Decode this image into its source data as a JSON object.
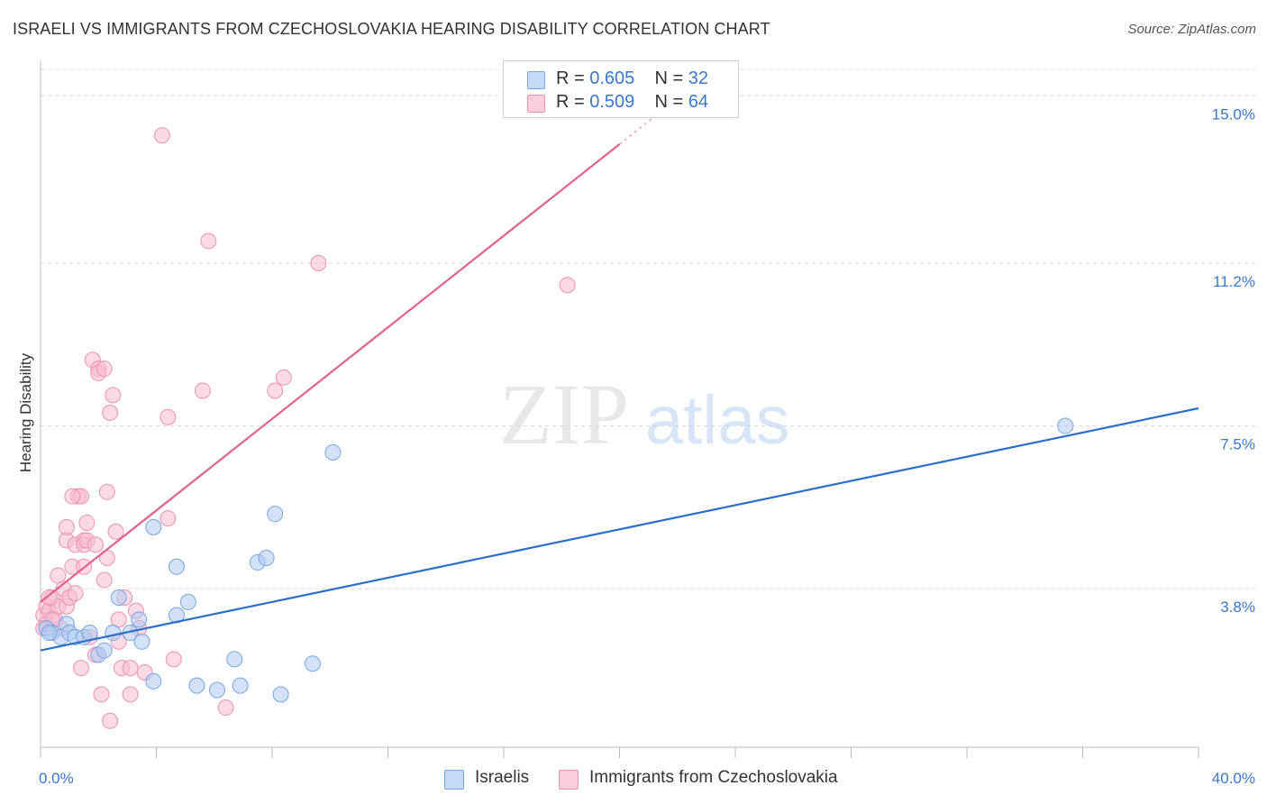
{
  "title": "ISRAELI VS IMMIGRANTS FROM CZECHOSLOVAKIA HEARING DISABILITY CORRELATION CHART",
  "source": "Source: ZipAtlas.com",
  "watermark": {
    "zip": "ZIP",
    "atlas": "atlas"
  },
  "legend": {
    "row1": {
      "r_label": "R = ",
      "r_value": "0.605",
      "n_label": "N = ",
      "n_value": "32"
    },
    "row2": {
      "r_label": "R = ",
      "r_value": "0.509",
      "n_label": "N = ",
      "n_value": "64"
    }
  },
  "bottom_legend": {
    "series1": "Israelis",
    "series2": "Immigrants from Czechoslovakia"
  },
  "colors": {
    "blue_fill": "#aecbf2",
    "blue_stroke": "#7aa6e0",
    "blue_line": "#2b6fcc",
    "pink_fill": "#f7bcd0",
    "pink_stroke": "#ee92b2",
    "pink_line": "#e0608e",
    "axis_label": "#3b78d0"
  },
  "chart_data": {
    "type": "scatter",
    "title": "ISRAELI VS IMMIGRANTS FROM CZECHOSLOVAKIA HEARING DISABILITY CORRELATION CHART",
    "xlabel": "",
    "ylabel": "Hearing Disability",
    "xlim": [
      0,
      40
    ],
    "ylim": [
      0.2,
      15.6
    ],
    "x_tick_labels": [
      "0.0%",
      "40.0%"
    ],
    "y_ticks": [
      3.8,
      7.5,
      11.2,
      15.0
    ],
    "y_tick_labels": [
      "3.8%",
      "7.5%",
      "11.2%",
      "15.0%"
    ],
    "grid": true,
    "series": [
      {
        "name": "Israelis",
        "R": 0.605,
        "N": 32,
        "trend": {
          "x": [
            0,
            40
          ],
          "y": [
            2.4,
            7.9
          ]
        },
        "points": [
          [
            0.2,
            2.9
          ],
          [
            0.4,
            2.8
          ],
          [
            0.7,
            2.7
          ],
          [
            0.9,
            3.0
          ],
          [
            1.0,
            2.8
          ],
          [
            1.2,
            2.7
          ],
          [
            1.5,
            2.7
          ],
          [
            1.7,
            2.8
          ],
          [
            2.0,
            2.3
          ],
          [
            2.2,
            2.4
          ],
          [
            2.5,
            2.8
          ],
          [
            2.7,
            3.6
          ],
          [
            3.1,
            2.8
          ],
          [
            3.4,
            3.1
          ],
          [
            3.5,
            2.6
          ],
          [
            3.9,
            1.7
          ],
          [
            3.9,
            5.2
          ],
          [
            4.7,
            3.2
          ],
          [
            4.7,
            4.3
          ],
          [
            5.1,
            3.5
          ],
          [
            5.4,
            1.6
          ],
          [
            6.1,
            1.5
          ],
          [
            6.7,
            2.2
          ],
          [
            6.9,
            1.6
          ],
          [
            7.5,
            4.4
          ],
          [
            7.8,
            4.5
          ],
          [
            8.1,
            5.5
          ],
          [
            8.3,
            1.4
          ],
          [
            9.4,
            2.1
          ],
          [
            10.1,
            6.9
          ],
          [
            35.4,
            7.5
          ],
          [
            0.3,
            2.8
          ]
        ]
      },
      {
        "name": "Immigrants from Czechoslovakia",
        "R": 0.509,
        "N": 64,
        "trend": {
          "x": [
            0,
            20
          ],
          "y": [
            3.5,
            13.9
          ]
        },
        "trend_dashed": {
          "x": [
            20,
            22.5
          ],
          "y": [
            13.9,
            15.2
          ]
        },
        "points": [
          [
            0.1,
            3.2
          ],
          [
            0.2,
            3.4
          ],
          [
            0.2,
            3.0
          ],
          [
            0.3,
            3.3
          ],
          [
            0.4,
            3.6
          ],
          [
            0.5,
            3.1
          ],
          [
            0.6,
            3.4
          ],
          [
            0.6,
            4.1
          ],
          [
            0.7,
            2.9
          ],
          [
            0.8,
            3.8
          ],
          [
            0.9,
            3.4
          ],
          [
            0.9,
            4.9
          ],
          [
            0.9,
            5.2
          ],
          [
            1.0,
            3.6
          ],
          [
            1.1,
            4.3
          ],
          [
            1.2,
            3.7
          ],
          [
            1.2,
            4.8
          ],
          [
            1.3,
            5.9
          ],
          [
            1.4,
            5.9
          ],
          [
            1.4,
            2.0
          ],
          [
            1.5,
            4.9
          ],
          [
            1.5,
            4.8
          ],
          [
            1.5,
            4.3
          ],
          [
            1.6,
            4.9
          ],
          [
            1.6,
            5.3
          ],
          [
            1.7,
            2.7
          ],
          [
            1.8,
            9.0
          ],
          [
            1.9,
            4.8
          ],
          [
            1.9,
            2.3
          ],
          [
            2.0,
            8.8
          ],
          [
            2.0,
            8.7
          ],
          [
            2.1,
            1.4
          ],
          [
            2.2,
            4.0
          ],
          [
            2.2,
            8.8
          ],
          [
            2.3,
            4.5
          ],
          [
            2.3,
            6.0
          ],
          [
            2.4,
            0.8
          ],
          [
            2.4,
            7.8
          ],
          [
            2.5,
            8.2
          ],
          [
            2.6,
            5.1
          ],
          [
            2.7,
            3.1
          ],
          [
            2.7,
            2.6
          ],
          [
            2.8,
            2.0
          ],
          [
            3.1,
            1.4
          ],
          [
            3.1,
            2.0
          ],
          [
            3.3,
            3.3
          ],
          [
            3.4,
            2.9
          ],
          [
            3.6,
            1.9
          ],
          [
            4.2,
            14.1
          ],
          [
            4.4,
            5.4
          ],
          [
            4.4,
            7.7
          ],
          [
            4.6,
            2.2
          ],
          [
            5.6,
            8.3
          ],
          [
            5.8,
            11.7
          ],
          [
            6.4,
            1.1
          ],
          [
            8.1,
            8.3
          ],
          [
            8.4,
            8.6
          ],
          [
            9.6,
            11.2
          ],
          [
            18.2,
            10.7
          ],
          [
            0.1,
            2.9
          ],
          [
            0.3,
            3.6
          ],
          [
            1.1,
            5.9
          ],
          [
            0.4,
            3.1
          ],
          [
            2.9,
            3.6
          ]
        ]
      }
    ]
  }
}
